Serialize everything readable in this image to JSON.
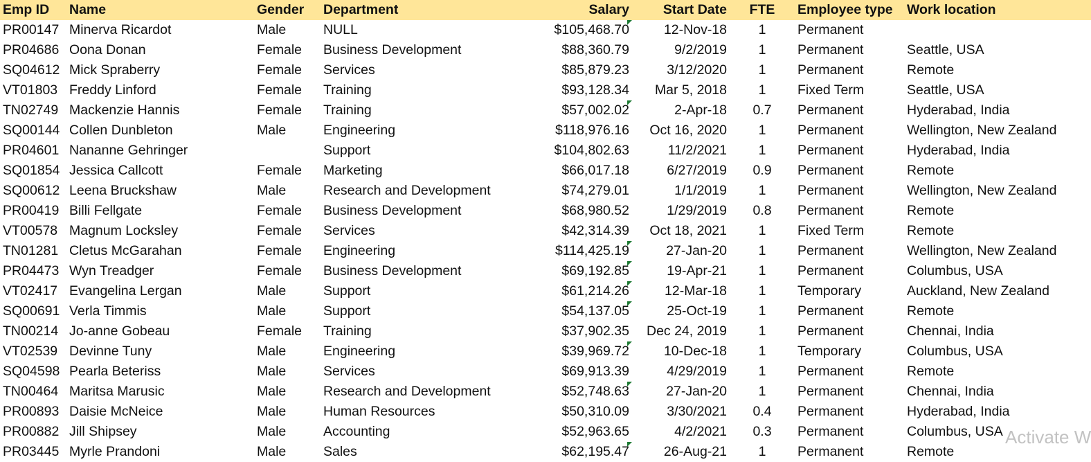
{
  "headers": {
    "emp_id": "Emp ID",
    "name": "Name",
    "gender": "Gender",
    "department": "Department",
    "salary": "Salary",
    "start_date": "Start Date",
    "fte": "FTE",
    "employee_type": "Employee type",
    "work_location": "Work location"
  },
  "rows": [
    {
      "emp_id": "PR00147",
      "name": "Minerva Ricardot",
      "gender": "Male",
      "department": "NULL",
      "salary": "$105,468.70",
      "start_date": "12-Nov-18",
      "fte": "1",
      "employee_type": "Permanent",
      "work_location": ""
    },
    {
      "emp_id": "PR04686",
      "name": "Oona Donan",
      "gender": "Female",
      "department": "Business Development",
      "salary": "$88,360.79",
      "start_date": "9/2/2019",
      "fte": "1",
      "employee_type": "Permanent",
      "work_location": "Seattle, USA"
    },
    {
      "emp_id": "SQ04612",
      "name": "Mick Spraberry",
      "gender": "Female",
      "department": "Services",
      "salary": "$85,879.23",
      "start_date": "3/12/2020",
      "fte": "1",
      "employee_type": "Permanent",
      "work_location": "Remote"
    },
    {
      "emp_id": "VT01803",
      "name": "Freddy Linford",
      "gender": "Female",
      "department": "Training",
      "salary": "$93,128.34",
      "start_date": "Mar 5, 2018",
      "fte": "1",
      "employee_type": "Fixed Term",
      "work_location": "Seattle, USA"
    },
    {
      "emp_id": "TN02749",
      "name": "Mackenzie Hannis",
      "gender": "Female",
      "department": "Training",
      "salary": "$57,002.02",
      "start_date": "2-Apr-18",
      "fte": "0.7",
      "employee_type": "Permanent",
      "work_location": "Hyderabad, India"
    },
    {
      "emp_id": "SQ00144",
      "name": "Collen Dunbleton",
      "gender": "Male",
      "department": "Engineering",
      "salary": "$118,976.16",
      "start_date": "Oct 16, 2020",
      "fte": "1",
      "employee_type": "Permanent",
      "work_location": "Wellington, New Zealand"
    },
    {
      "emp_id": "PR04601",
      "name": "Nananne Gehringer",
      "gender": "",
      "department": "Support",
      "salary": "$104,802.63",
      "start_date": "11/2/2021",
      "fte": "1",
      "employee_type": "Permanent",
      "work_location": "Hyderabad, India"
    },
    {
      "emp_id": "SQ01854",
      "name": "Jessica Callcott",
      "gender": "Female",
      "department": "Marketing",
      "salary": "$66,017.18",
      "start_date": "6/27/2019",
      "fte": "0.9",
      "employee_type": "Permanent",
      "work_location": "Remote"
    },
    {
      "emp_id": "SQ00612",
      "name": " Leena Bruckshaw",
      "gender": "Male",
      "department": "Research and Development",
      "salary": "$74,279.01",
      "start_date": "1/1/2019",
      "fte": "1",
      "employee_type": "Permanent",
      "work_location": "Wellington, New Zealand"
    },
    {
      "emp_id": "PR00419",
      "name": "Billi Fellgate",
      "gender": "Female",
      "department": "Business Development",
      "salary": "$68,980.52",
      "start_date": "1/29/2019",
      "fte": "0.8",
      "employee_type": "Permanent",
      "work_location": "Remote"
    },
    {
      "emp_id": "VT00578",
      "name": "Magnum Locksley",
      "gender": "Female",
      "department": "Services",
      "salary": "$42,314.39",
      "start_date": "Oct 18, 2021",
      "fte": "1",
      "employee_type": "Fixed Term",
      "work_location": "Remote"
    },
    {
      "emp_id": "TN01281",
      "name": "Cletus McGarahan",
      "gender": "Female",
      "department": "Engineering",
      "salary": "$114,425.19",
      "start_date": "27-Jan-20",
      "fte": "1",
      "employee_type": "Permanent",
      "work_location": "Wellington, New Zealand"
    },
    {
      "emp_id": "PR04473",
      "name": " Wyn Treadger",
      "gender": "Female",
      "department": "Business Development",
      "salary": "$69,192.85",
      "start_date": "19-Apr-21",
      "fte": "1",
      "employee_type": "Permanent",
      "work_location": "Columbus, USA"
    },
    {
      "emp_id": "VT02417",
      "name": "Evangelina Lergan",
      "gender": "Male",
      "department": "Support",
      "salary": "$61,214.26",
      "start_date": "12-Mar-18",
      "fte": "1",
      "employee_type": "Temporary",
      "work_location": "Auckland, New Zealand"
    },
    {
      "emp_id": "SQ00691",
      "name": "Verla Timmis",
      "gender": "Male",
      "department": "Support",
      "salary": "$54,137.05",
      "start_date": "25-Oct-19",
      "fte": "1",
      "employee_type": "Permanent",
      "work_location": "Remote"
    },
    {
      "emp_id": "TN00214",
      "name": "Jo-anne Gobeau",
      "gender": "Female",
      "department": "Training",
      "salary": "$37,902.35",
      "start_date": "Dec 24, 2019",
      "fte": "1",
      "employee_type": "Permanent",
      "work_location": "Chennai, India"
    },
    {
      "emp_id": "VT02539",
      "name": "Devinne Tuny",
      "gender": "Male",
      "department": "Engineering",
      "salary": "$39,969.72",
      "start_date": "10-Dec-18",
      "fte": "1",
      "employee_type": "Temporary",
      "work_location": "Columbus, USA"
    },
    {
      "emp_id": "SQ04598",
      "name": "Pearla  Beteriss",
      "gender": "Male",
      "department": "Services",
      "salary": "$69,913.39",
      "start_date": "4/29/2019",
      "fte": "1",
      "employee_type": "Permanent",
      "work_location": "Remote"
    },
    {
      "emp_id": "TN00464",
      "name": "Maritsa Marusic",
      "gender": "Male",
      "department": "Research and Development",
      "salary": "$52,748.63",
      "start_date": "27-Jan-20",
      "fte": "1",
      "employee_type": "Permanent",
      "work_location": "Chennai, India"
    },
    {
      "emp_id": "PR00893",
      "name": "Daisie McNeice",
      "gender": "Male",
      "department": "Human Resources",
      "salary": "$50,310.09",
      "start_date": "3/30/2021",
      "fte": "0.4",
      "employee_type": "Permanent",
      "work_location": "Hyderabad, India"
    },
    {
      "emp_id": "PR00882",
      "name": " Jill Shipsey",
      "gender": "Male",
      "department": "Accounting",
      "salary": "$52,963.65",
      "start_date": "4/2/2021",
      "fte": "0.3",
      "employee_type": "Permanent",
      "work_location": "Columbus, USA"
    },
    {
      "emp_id": "PR03445",
      "name": "Myrle Prandoni",
      "gender": "Male",
      "department": "Sales",
      "salary": "$62,195.47",
      "start_date": "26-Aug-21",
      "fte": "1",
      "employee_type": "Permanent",
      "work_location": "Remote"
    }
  ],
  "salary_flag_rows": [
    0,
    4,
    11,
    12,
    13,
    14,
    16,
    18,
    21
  ],
  "flag_color": "#1e7b34",
  "header_fill": "#ffe699",
  "watermark": "Activate W"
}
